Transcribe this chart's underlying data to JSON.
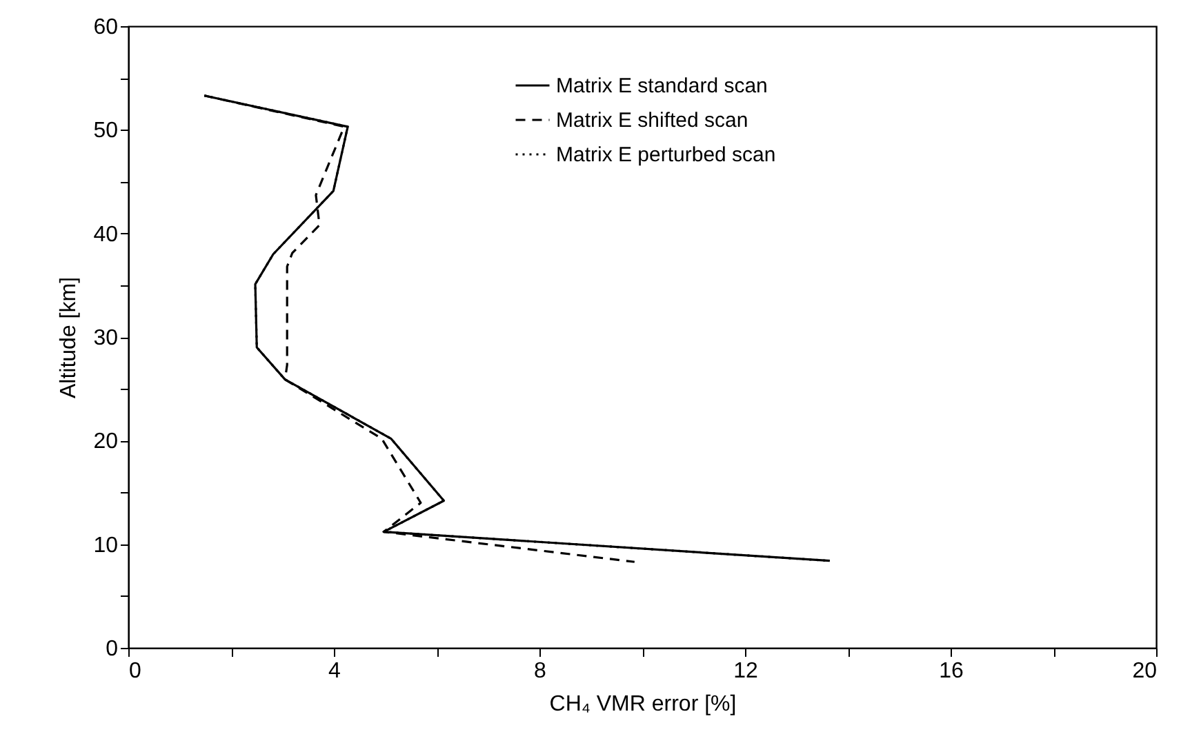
{
  "chart_data": {
    "type": "line",
    "xlabel": "CH₄ VMR error [%]",
    "ylabel": "Altitude [km]",
    "xlim": [
      0,
      20
    ],
    "ylim": [
      0,
      60
    ],
    "xticks": [
      0,
      {
        "value": 2,
        "label": null
      },
      4,
      {
        "value": 6,
        "label": null
      },
      8,
      {
        "value": 10,
        "label": null
      },
      12,
      {
        "value": 14,
        "label": null
      },
      16,
      {
        "value": 18,
        "label": null
      },
      20
    ],
    "yticks": [
      0,
      {
        "value": 5,
        "label": null
      },
      10,
      {
        "value": 15,
        "label": null
      },
      20,
      {
        "value": 25,
        "label": null
      },
      30,
      {
        "value": 35,
        "label": null
      },
      40,
      {
        "value": 45,
        "label": null
      },
      50,
      {
        "value": 55,
        "label": null
      },
      60
    ],
    "grid": false,
    "legend": "top",
    "marker": "none",
    "series": [
      {
        "name": "Matrix E standard scan",
        "color": "#000000",
        "line_style": "solid",
        "x": [
          1.48,
          4.27,
          3.99,
          2.82,
          2.47,
          2.5,
          3.05,
          5.11,
          6.14,
          4.97,
          13.65
        ],
        "values": [
          53.3,
          50.3,
          44.1,
          38.0,
          35.1,
          29.0,
          25.9,
          20.2,
          14.2,
          11.2,
          8.4
        ]
      },
      {
        "name": "Matrix E shifted scan",
        "color": "#000000",
        "line_style": "dashed",
        "x": [
          1.48,
          4.2,
          3.65,
          3.72,
          3.19,
          3.09,
          3.09,
          3.05,
          4.93,
          5.69,
          4.97,
          9.85
        ],
        "values": [
          53.3,
          50.3,
          43.7,
          40.8,
          38.1,
          36.8,
          27.3,
          25.9,
          20.2,
          14.0,
          11.2,
          8.3
        ]
      },
      {
        "name": "Matrix E perturbed scan",
        "color": "#000000",
        "line_style": "dotted",
        "x": [
          1.48,
          4.27,
          3.99,
          2.82,
          2.47,
          2.5,
          3.05,
          5.11,
          6.14,
          4.97,
          13.65
        ],
        "values": [
          53.3,
          50.3,
          44.1,
          38.0,
          35.1,
          29.0,
          25.9,
          20.2,
          14.2,
          11.2,
          8.4
        ]
      }
    ]
  }
}
